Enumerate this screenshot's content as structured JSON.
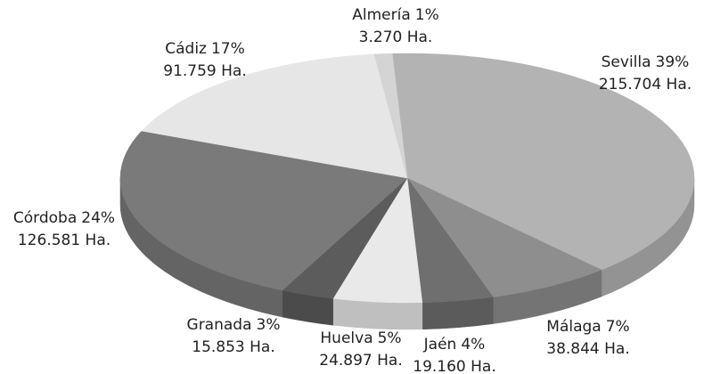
{
  "chart_data": {
    "type": "pie3d",
    "categories": [
      "Sevilla",
      "Málaga",
      "Jaén",
      "Huelva",
      "Granada",
      "Córdoba",
      "Cádiz",
      "Almería"
    ],
    "values": [
      39,
      7,
      4,
      5,
      3,
      24,
      17,
      1
    ],
    "value_labels": [
      "39%",
      "7%",
      "4%",
      "5%",
      "3%",
      "24%",
      "17%",
      "1%"
    ],
    "area_labels": [
      "215.704 Ha.",
      "38.844 Ha.",
      "19.160 Ha.",
      "24.897 Ha.",
      "15.853 Ha.",
      "126.581 Ha.",
      "91.759 Ha.",
      "3.270 Ha."
    ],
    "colors": [
      "#b3b3b3",
      "#8e8e8e",
      "#6f6f6f",
      "#e9e9e9",
      "#5c5c5c",
      "#7a7a7a",
      "#e6e6e6",
      "#d4d4d4"
    ]
  }
}
